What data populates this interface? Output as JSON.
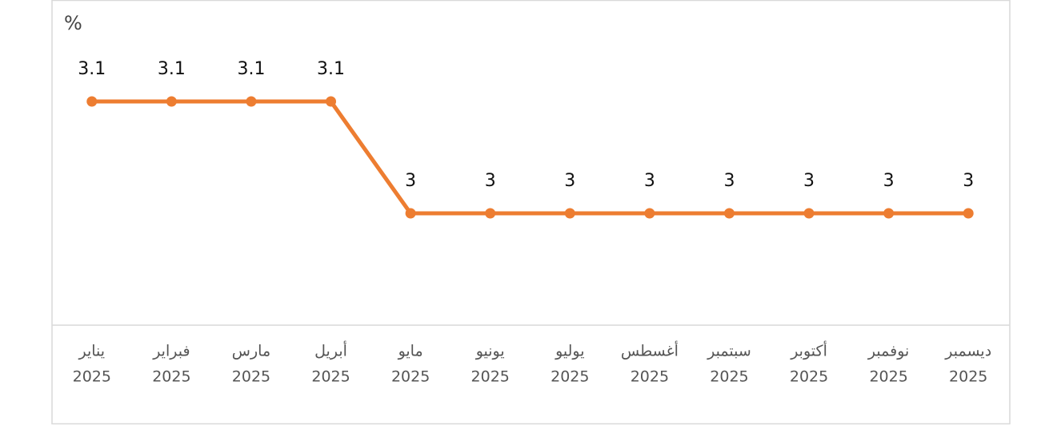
{
  "chart_data": {
    "type": "line",
    "unit": "%",
    "categories": [
      [
        "يناير",
        "2025"
      ],
      [
        "فبراير",
        "2025"
      ],
      [
        "مارس",
        "2025"
      ],
      [
        "أبريل",
        "2025"
      ],
      [
        "مايو",
        "2025"
      ],
      [
        "يونيو",
        "2025"
      ],
      [
        "يوليو",
        "2025"
      ],
      [
        "أغسطس",
        "2025"
      ],
      [
        "سبتمبر",
        "2025"
      ],
      [
        "أكتوبر",
        "2025"
      ],
      [
        "نوفمبر",
        "2025"
      ],
      [
        "ديسمبر",
        "2025"
      ]
    ],
    "values": [
      3.1,
      3.1,
      3.1,
      3.1,
      3,
      3,
      3,
      3,
      3,
      3,
      3,
      3
    ],
    "color": "#ed7d31",
    "ylim": [
      2.9,
      3.15
    ]
  }
}
